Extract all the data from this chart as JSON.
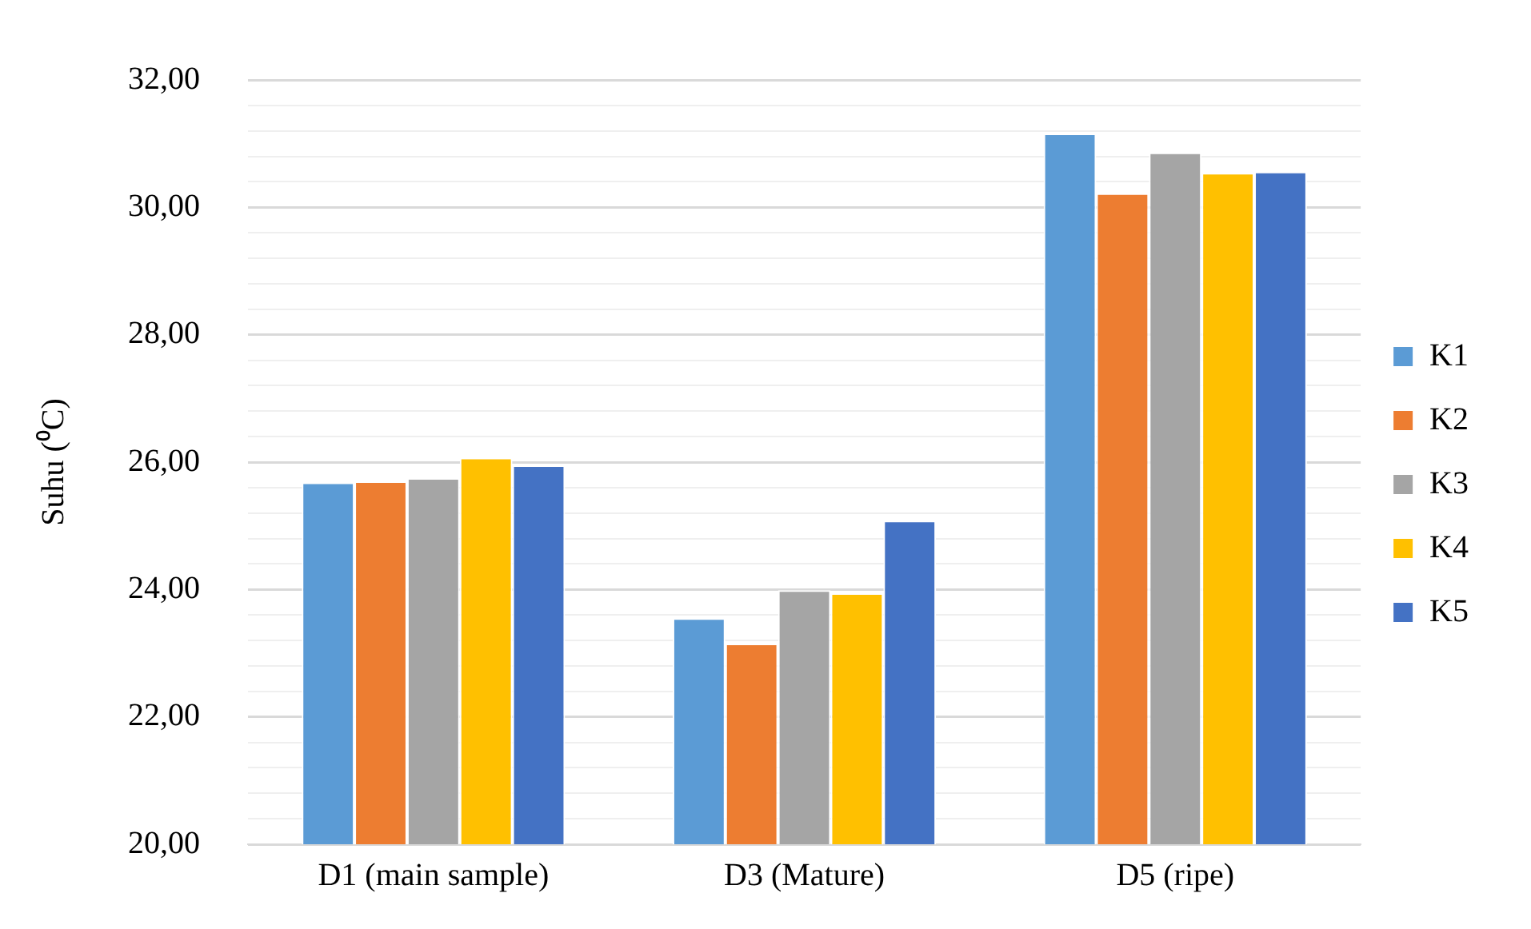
{
  "chart_data": {
    "type": "bar",
    "ylabel": "Suhu (⁰C)",
    "categories": [
      "D1 (main sample)",
      "D3 (Mature)",
      "D5 (ripe)"
    ],
    "series": [
      {
        "name": "K1",
        "color": "#5b9bd5",
        "values": [
          25.68,
          23.55,
          31.16
        ]
      },
      {
        "name": "K2",
        "color": "#ed7d31",
        "values": [
          25.7,
          23.15,
          30.22
        ]
      },
      {
        "name": "K3",
        "color": "#a5a5a5",
        "values": [
          25.75,
          23.99,
          30.86
        ]
      },
      {
        "name": "K4",
        "color": "#ffc000",
        "values": [
          26.07,
          23.94,
          30.54
        ]
      },
      {
        "name": "K5",
        "color": "#4472c4",
        "values": [
          25.95,
          25.08,
          30.56
        ]
      }
    ],
    "ylim": [
      20,
      32
    ],
    "yticks": [
      {
        "value": 20,
        "label": "20,00"
      },
      {
        "value": 20.4,
        "label": null
      },
      {
        "value": 20.8,
        "label": null
      },
      {
        "value": 21.2,
        "label": null
      },
      {
        "value": 21.6,
        "label": null
      },
      {
        "value": 22,
        "label": "22,00"
      },
      {
        "value": 22.4,
        "label": null
      },
      {
        "value": 22.8,
        "label": null
      },
      {
        "value": 23.2,
        "label": null
      },
      {
        "value": 23.6,
        "label": null
      },
      {
        "value": 24,
        "label": "24,00"
      },
      {
        "value": 24.4,
        "label": null
      },
      {
        "value": 24.8,
        "label": null
      },
      {
        "value": 25.2,
        "label": null
      },
      {
        "value": 25.6,
        "label": null
      },
      {
        "value": 26,
        "label": "26,00"
      },
      {
        "value": 26.4,
        "label": null
      },
      {
        "value": 26.8,
        "label": null
      },
      {
        "value": 27.2,
        "label": null
      },
      {
        "value": 27.6,
        "label": null
      },
      {
        "value": 28,
        "label": "28,00"
      },
      {
        "value": 28.4,
        "label": null
      },
      {
        "value": 28.8,
        "label": null
      },
      {
        "value": 29.2,
        "label": null
      },
      {
        "value": 29.6,
        "label": null
      },
      {
        "value": 30,
        "label": "30,00"
      },
      {
        "value": 30.4,
        "label": null
      },
      {
        "value": 30.8,
        "label": null
      },
      {
        "value": 31.2,
        "label": null
      },
      {
        "value": 31.6,
        "label": null
      },
      {
        "value": 32,
        "label": "32,00"
      }
    ],
    "grid": "y",
    "legend": "right"
  }
}
